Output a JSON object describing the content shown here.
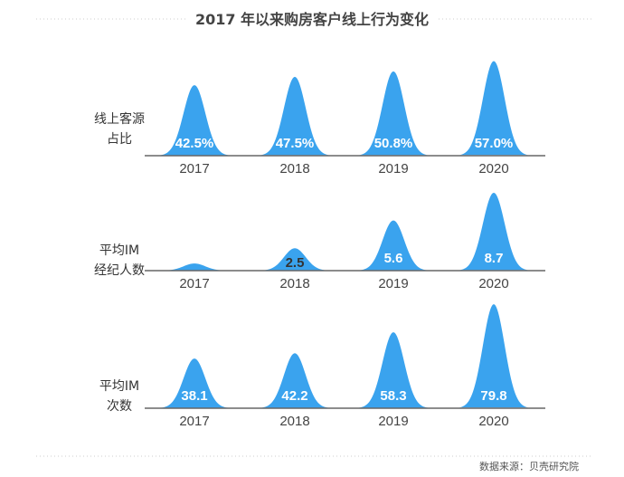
{
  "title": "2017 年以来购房客户线上行为变化",
  "source": "数据来源：贝壳研究院",
  "colors": {
    "peak": "#3aa3ee",
    "axis": "#666666",
    "dots": "#cccccc"
  },
  "chart_data": [
    {
      "type": "area",
      "label_lines": [
        "线上客源",
        "占比"
      ],
      "categories": [
        "2017",
        "2018",
        "2019",
        "2020"
      ],
      "values": [
        42.5,
        47.5,
        50.8,
        57.0
      ],
      "data_labels": [
        "42.5%",
        "47.5%",
        "50.8%",
        "57.0%"
      ],
      "ylim": [
        0,
        60
      ]
    },
    {
      "type": "area",
      "label_lines": [
        "平均IM",
        "经纪人数"
      ],
      "categories": [
        "2017",
        "2018",
        "2019",
        "2020"
      ],
      "values": [
        0.8,
        2.5,
        5.6,
        8.7
      ],
      "data_labels": [
        "",
        "2.5",
        "5.6",
        "8.7"
      ],
      "ylim": [
        0,
        9.3
      ]
    },
    {
      "type": "area",
      "label_lines": [
        "平均IM",
        "次数"
      ],
      "categories": [
        "2017",
        "2018",
        "2019",
        "2020"
      ],
      "values": [
        38.1,
        42.2,
        58.3,
        79.8
      ],
      "data_labels": [
        "38.1",
        "42.2",
        "58.3",
        "79.8"
      ],
      "ylim": [
        0,
        82
      ]
    }
  ]
}
